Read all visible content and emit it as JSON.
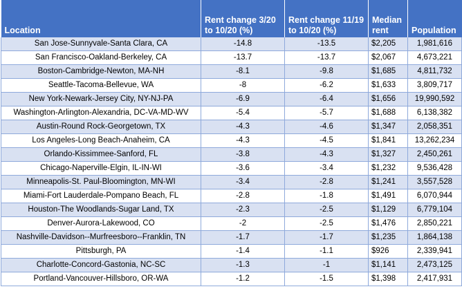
{
  "headers": {
    "location": "Location",
    "change_mar": "Rent change 3/20 to 10/20 (%)",
    "change_nov": "Rent change 11/19 to 10/20 (%)",
    "median_rent": "Median rent",
    "population": "Population"
  },
  "rows": [
    {
      "location": "San Jose-Sunnyvale-Santa Clara, CA",
      "change_mar": "-14.8",
      "change_nov": "-13.5",
      "median_rent": "$2,205",
      "population": "1,981,616"
    },
    {
      "location": "San Francisco-Oakland-Berkeley, CA",
      "change_mar": "-13.7",
      "change_nov": "-13.7",
      "median_rent": "$2,067",
      "population": "4,673,221"
    },
    {
      "location": "Boston-Cambridge-Newton, MA-NH",
      "change_mar": "-8.1",
      "change_nov": "-9.8",
      "median_rent": "$1,685",
      "population": "4,811,732"
    },
    {
      "location": "Seattle-Tacoma-Bellevue, WA",
      "change_mar": "-8",
      "change_nov": "-6.2",
      "median_rent": "$1,633",
      "population": "3,809,717"
    },
    {
      "location": "New York-Newark-Jersey City, NY-NJ-PA",
      "change_mar": "-6.9",
      "change_nov": "-6.4",
      "median_rent": "$1,656",
      "population": "19,990,592"
    },
    {
      "location": "Washington-Arlington-Alexandria, DC-VA-MD-WV",
      "change_mar": "-5.4",
      "change_nov": "-5.7",
      "median_rent": "$1,688",
      "population": "6,138,382"
    },
    {
      "location": "Austin-Round Rock-Georgetown, TX",
      "change_mar": "-4.3",
      "change_nov": "-4.6",
      "median_rent": "$1,347",
      "population": "2,058,351"
    },
    {
      "location": "Los Angeles-Long Beach-Anaheim, CA",
      "change_mar": "-4.3",
      "change_nov": "-4.5",
      "median_rent": "$1,841",
      "population": "13,262,234"
    },
    {
      "location": "Orlando-Kissimmee-Sanford, FL",
      "change_mar": "-3.8",
      "change_nov": "-4.3",
      "median_rent": "$1,327",
      "population": "2,450,261"
    },
    {
      "location": "Chicago-Naperville-Elgin, IL-IN-WI",
      "change_mar": "-3.6",
      "change_nov": "-3.4",
      "median_rent": "$1,232",
      "population": "9,536,428"
    },
    {
      "location": "Minneapolis-St. Paul-Bloomington, MN-WI",
      "change_mar": "-3.4",
      "change_nov": "-2.8",
      "median_rent": "$1,241",
      "population": "3,557,528"
    },
    {
      "location": "Miami-Fort Lauderdale-Pompano Beach, FL",
      "change_mar": "-2.8",
      "change_nov": "-1.8",
      "median_rent": "$1,491",
      "population": "6,070,944"
    },
    {
      "location": "Houston-The Woodlands-Sugar Land, TX",
      "change_mar": "-2.3",
      "change_nov": "-2.5",
      "median_rent": "$1,129",
      "population": "6,779,104"
    },
    {
      "location": "Denver-Aurora-Lakewood, CO",
      "change_mar": "-2",
      "change_nov": "-2.5",
      "median_rent": "$1,476",
      "population": "2,850,221"
    },
    {
      "location": "Nashville-Davidson--Murfreesboro--Franklin, TN",
      "change_mar": "-1.7",
      "change_nov": "-1.7",
      "median_rent": "$1,235",
      "population": "1,864,138"
    },
    {
      "location": "Pittsburgh, PA",
      "change_mar": "-1.4",
      "change_nov": "-1.1",
      "median_rent": "$926",
      "population": "2,339,941"
    },
    {
      "location": "Charlotte-Concord-Gastonia, NC-SC",
      "change_mar": "-1.3",
      "change_nov": "-1",
      "median_rent": "$1,141",
      "population": "2,473,125"
    },
    {
      "location": "Portland-Vancouver-Hillsboro, OR-WA",
      "change_mar": "-1.2",
      "change_nov": "-1.5",
      "median_rent": "$1,398",
      "population": "2,417,931"
    }
  ]
}
